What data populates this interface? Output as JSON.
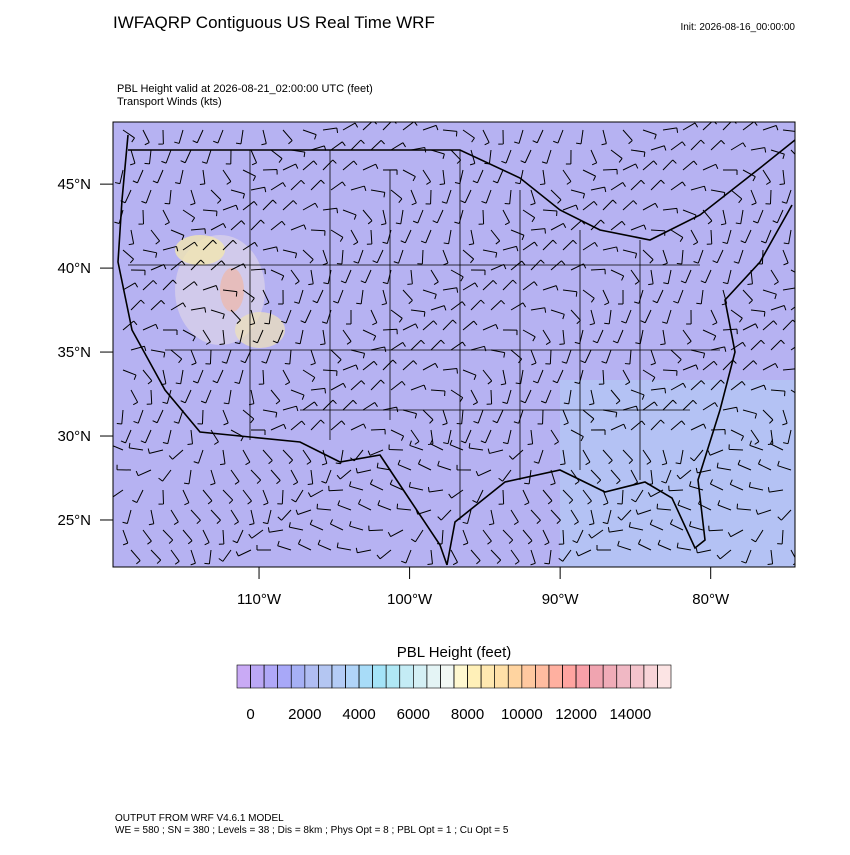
{
  "chart_data": {
    "type": "map",
    "title": "IWFAQRP Contiguous US Real Time WRF",
    "init_label": "Init: 2026-08-16_00:00:00",
    "subtitle": [
      "PBL Height valid at 2026-08-21_02:00:00 UTC   (feet)",
      "Transport Winds   (kts)"
    ],
    "xlim": [
      -119.7,
      -74.4
    ],
    "ylim": [
      22.2,
      48.7
    ],
    "xticks": [
      {
        "value": -110,
        "label": "110°W"
      },
      {
        "value": -100,
        "label": "100°W"
      },
      {
        "value": -90,
        "label": "90°W"
      },
      {
        "value": -80,
        "label": "80°W"
      }
    ],
    "yticks": [
      {
        "value": 25,
        "label": "25°N"
      },
      {
        "value": 30,
        "label": "30°N"
      },
      {
        "value": 35,
        "label": "35°N"
      },
      {
        "value": 40,
        "label": "40°N"
      },
      {
        "value": 45,
        "label": "45°N"
      }
    ],
    "colorbar": {
      "title": "PBL Height  (feet)",
      "levels": [
        0,
        500,
        1000,
        1500,
        2000,
        2500,
        3000,
        3500,
        4000,
        4500,
        5000,
        5500,
        6000,
        6500,
        7000,
        7500,
        8000,
        8500,
        9000,
        9500,
        10000,
        10500,
        11000,
        11500,
        12000,
        12500,
        13000,
        13500,
        14000,
        14500,
        15000
      ],
      "colors": [
        "#c9aaf5",
        "#bba8f5",
        "#b0a8f8",
        "#a8a8f8",
        "#a6b0f5",
        "#b0bdf3",
        "#b4c6f2",
        "#b4ccf6",
        "#b0d4f8",
        "#a8dcf8",
        "#a4e4f8",
        "#b0e8f5",
        "#c4ecf5",
        "#d4f0f5",
        "#e4f4f5",
        "#f2f8f4",
        "#fff8d0",
        "#fff0b8",
        "#ffe8b0",
        "#ffe0a8",
        "#ffd4a0",
        "#ffc8a0",
        "#ffbca0",
        "#ffb0a0",
        "#ffa4a0",
        "#f8a0a8",
        "#f0a4b0",
        "#f0acb8",
        "#f0b8c4",
        "#f4c4cc",
        "#f8d4d8",
        "#fce4e4"
      ],
      "ticks": [
        0,
        2000,
        4000,
        6000,
        8000,
        10000,
        12000,
        14000
      ]
    },
    "footer": [
      "OUTPUT FROM WRF V4.6.1 MODEL",
      "WE = 580 ; SN = 380 ; Levels = 38 ; Dis = 8km ; Phys Opt = 8 ; PBL Opt = 1 ; Cu Opt = 5"
    ]
  }
}
